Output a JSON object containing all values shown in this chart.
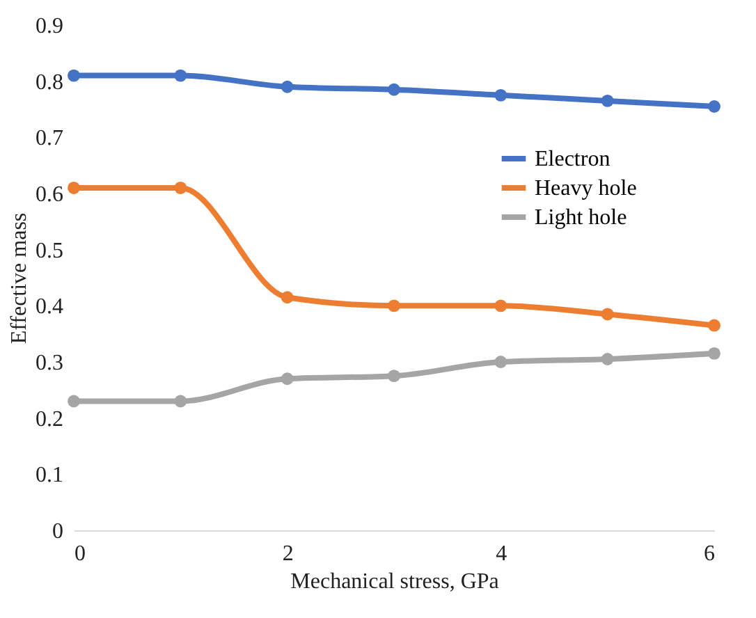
{
  "chart_data": {
    "type": "line",
    "xlabel": "Mechanical stress, GPa",
    "ylabel": "Effective mass",
    "x": [
      0,
      1,
      2,
      3,
      4,
      5,
      6
    ],
    "series": [
      {
        "name": "Electron",
        "color": "#4472c4",
        "values": [
          0.81,
          0.81,
          0.79,
          0.785,
          0.775,
          0.765,
          0.755
        ]
      },
      {
        "name": "Heavy hole",
        "color": "#ed7d31",
        "values": [
          0.61,
          0.61,
          0.415,
          0.4,
          0.4,
          0.385,
          0.365
        ]
      },
      {
        "name": "Light hole",
        "color": "#a5a5a5",
        "values": [
          0.23,
          0.23,
          0.27,
          0.275,
          0.3,
          0.305,
          0.315
        ]
      }
    ],
    "xlim": [
      0,
      6
    ],
    "xticks": [
      0,
      2,
      4,
      6
    ],
    "ylim": [
      0,
      0.9
    ],
    "yticks": [
      0,
      0.1,
      0.2,
      0.3,
      0.4,
      0.5,
      0.6,
      0.7,
      0.8,
      0.9
    ],
    "grid": false,
    "legend": "right",
    "marker": "circle",
    "line_style": "solid"
  }
}
